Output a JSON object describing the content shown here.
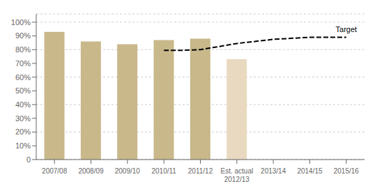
{
  "chart_data": {
    "type": "bar",
    "categories": [
      "2007/08",
      "2008/09",
      "2009/10",
      "2010/11",
      "2011/12",
      "Est. actual\n2012/13",
      "2013/14",
      "2014/15",
      "2015/16"
    ],
    "series": [
      {
        "type": "bar",
        "values": [
          0.93,
          0.86,
          0.84,
          0.87,
          0.88,
          0.73,
          null,
          null,
          null
        ],
        "colors": [
          "#c8b88a",
          "#c8b88a",
          "#c8b88a",
          "#c8b88a",
          "#c8b88a",
          "#e8d9c0",
          null,
          null,
          null
        ]
      },
      {
        "type": "line",
        "line_style": "dashed",
        "color": "#000000",
        "x": [
          3,
          3.5,
          4,
          5,
          6,
          7,
          8
        ],
        "values": [
          0.795,
          0.795,
          0.8,
          0.845,
          0.875,
          0.89,
          0.89
        ]
      }
    ],
    "annotations": [
      "Target"
    ],
    "ylim": [
      0,
      1.06
    ],
    "yticks": [
      0,
      {
        "value": 0.1,
        "label": "10%"
      },
      {
        "value": 0.2,
        "label": "20%"
      },
      {
        "value": 0.3,
        "label": "30%"
      },
      {
        "value": 0.4,
        "label": "40%"
      },
      {
        "value": 0.5,
        "label": "50%"
      },
      {
        "value": 0.6,
        "label": "60%"
      },
      {
        "value": 0.7,
        "label": "70%"
      },
      {
        "value": 0.8,
        "label": "80%"
      },
      {
        "value": 0.9,
        "label": "90%"
      },
      {
        "value": 1.0,
        "label": "100%"
      }
    ],
    "grid": true
  }
}
